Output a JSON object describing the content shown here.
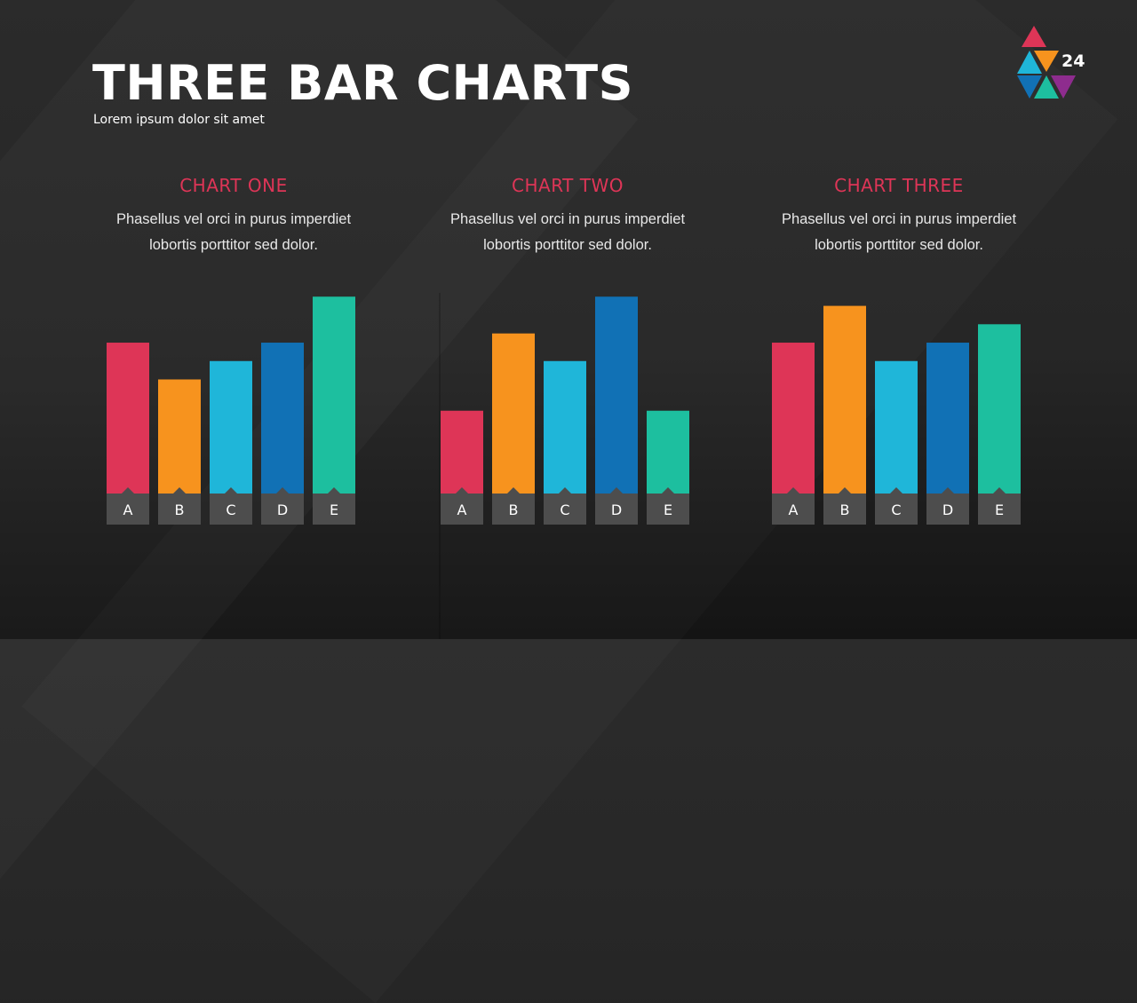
{
  "slide": {
    "title": "THREE BAR CHARTS",
    "subtitle": "Lorem ipsum dolor sit amet",
    "page_number": "24"
  },
  "logo": {
    "icon": "triangles-logo-icon",
    "colors": [
      "#de3557",
      "#1fb6d9",
      "#f7931e",
      "#1171b5",
      "#1dbf9f",
      "#8e2c8e"
    ]
  },
  "colors": {
    "bars": [
      "#de3557",
      "#f7931e",
      "#1fb6d9",
      "#1171b5",
      "#1dbf9f"
    ],
    "label_box": "#4d4d4d",
    "chart_title": "#de3557"
  },
  "charts": [
    {
      "title": "CHART ONE",
      "desc_line1": "Phasellus vel orci in purus imperdiet",
      "desc_line2": "lobortis porttitor sed dolor."
    },
    {
      "title": "CHART TWO",
      "desc_line1": "Phasellus vel orci in purus imperdiet",
      "desc_line2": "lobortis porttitor sed dolor."
    },
    {
      "title": "CHART THREE",
      "desc_line1": "Phasellus vel orci in purus imperdiet",
      "desc_line2": "lobortis porttitor sed dolor."
    }
  ],
  "chart_data": [
    {
      "type": "bar",
      "title": "CHART ONE",
      "categories": [
        "A",
        "B",
        "C",
        "D",
        "E"
      ],
      "values": [
        82,
        62,
        72,
        82,
        107
      ],
      "ylim": [
        0,
        110
      ],
      "grid": false
    },
    {
      "type": "bar",
      "title": "CHART TWO",
      "categories": [
        "A",
        "B",
        "C",
        "D",
        "E"
      ],
      "values": [
        45,
        87,
        72,
        107,
        45
      ],
      "ylim": [
        0,
        110
      ],
      "grid": false
    },
    {
      "type": "bar",
      "title": "CHART THREE",
      "categories": [
        "A",
        "B",
        "C",
        "D",
        "E"
      ],
      "values": [
        82,
        102,
        72,
        82,
        92
      ],
      "ylim": [
        0,
        110
      ],
      "grid": false
    }
  ]
}
